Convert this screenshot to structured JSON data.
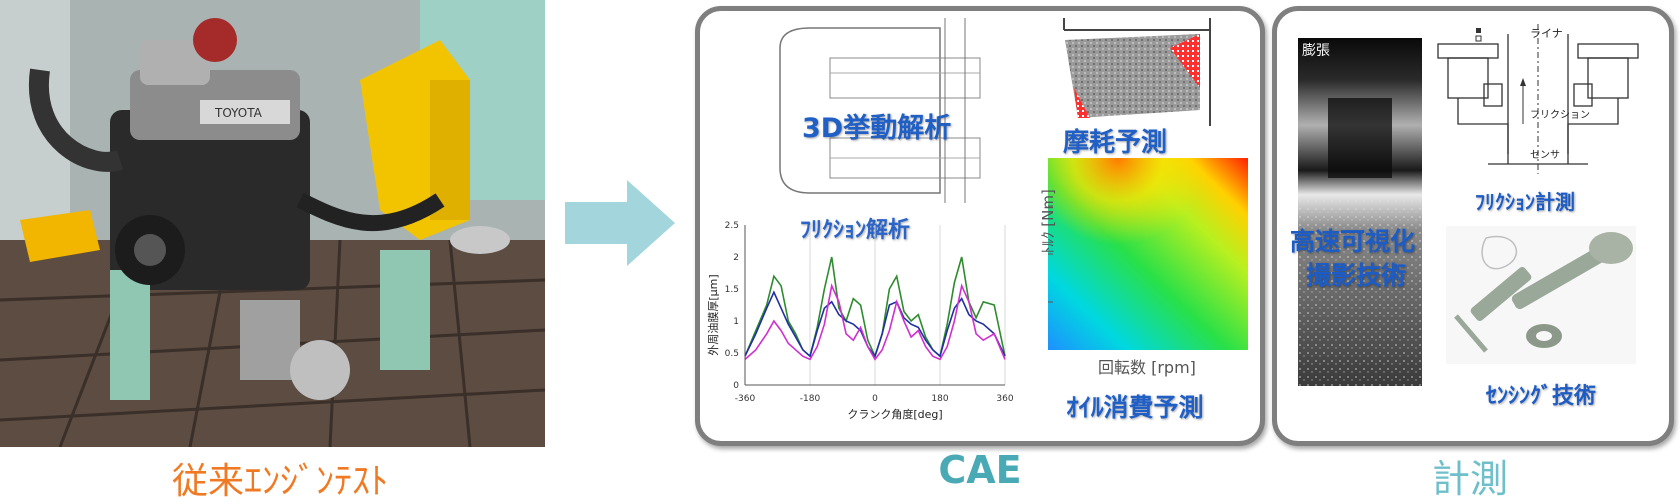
{
  "left": {
    "caption": "従来ｴﾝｼﾞﾝﾃｽﾄ",
    "photo_badge": "TOYOTA"
  },
  "cae": {
    "caption": "CAE",
    "label_3d": "3D挙動解析",
    "label_wear": "摩耗予測",
    "label_oil": "ｵｲﾙ消費予測",
    "friction_chart_title": "ﾌﾘｸｼｮﾝ解析",
    "heatmap_xlabel": "回転数 [rpm]",
    "heatmap_ylabel": "ﾄﾙｸ [Nm]"
  },
  "measure": {
    "caption": "計測",
    "label_highspeed_1": "高速可視化",
    "label_highspeed_2": "撮影技術",
    "label_friction": "ﾌﾘｸｼｮﾝ計測",
    "label_sensing": "ｾﾝｼﾝｸﾞ技術",
    "img_label_expansion": "膨張",
    "liner_label": "ライナ",
    "friction_small_label": "フリクション",
    "sensor_label": "センサ"
  },
  "chart_data": {
    "type": "line",
    "title": "ﾌﾘｸｼｮﾝ解析",
    "xlabel": "クランク角度[deg]",
    "ylabel": "外周油膜厚[μm]",
    "xlim": [
      -360,
      360
    ],
    "ylim": [
      0,
      2.5
    ],
    "xticks": [
      -360,
      -180,
      0,
      180,
      360
    ],
    "yticks": [
      0,
      0.5,
      1,
      1.5,
      2,
      2.5
    ],
    "x": [
      -360,
      -330,
      -300,
      -280,
      -260,
      -240,
      -220,
      -200,
      -180,
      -160,
      -140,
      -120,
      -100,
      -80,
      -60,
      -40,
      -20,
      0,
      20,
      40,
      60,
      80,
      100,
      120,
      140,
      160,
      180,
      200,
      220,
      240,
      260,
      280,
      300,
      330,
      360
    ],
    "series": [
      {
        "color": "#2e8b2e",
        "values": [
          0.45,
          0.85,
          1.25,
          1.7,
          1.55,
          1.0,
          0.8,
          0.55,
          0.45,
          0.9,
          1.5,
          2.0,
          1.2,
          1.0,
          1.35,
          1.25,
          0.7,
          0.45,
          0.8,
          1.5,
          1.7,
          1.15,
          1.0,
          1.1,
          0.75,
          0.55,
          0.45,
          0.95,
          1.6,
          2.0,
          1.3,
          1.05,
          1.3,
          1.25,
          0.45
        ]
      },
      {
        "color": "#2030a0",
        "values": [
          0.45,
          0.8,
          1.2,
          1.45,
          1.2,
          0.95,
          0.75,
          0.55,
          0.45,
          0.85,
          1.2,
          1.3,
          1.1,
          1.0,
          0.95,
          0.85,
          0.6,
          0.45,
          0.8,
          1.25,
          1.3,
          1.05,
          0.95,
          0.9,
          0.7,
          0.55,
          0.45,
          0.85,
          1.2,
          1.35,
          1.1,
          1.0,
          0.95,
          0.8,
          0.45
        ]
      },
      {
        "color": "#d030d0",
        "values": [
          0.4,
          0.55,
          0.8,
          1.0,
          0.85,
          0.65,
          0.55,
          0.45,
          0.4,
          0.6,
          0.95,
          1.55,
          1.3,
          0.8,
          0.7,
          0.9,
          0.6,
          0.4,
          0.55,
          0.85,
          1.3,
          1.0,
          0.75,
          0.85,
          0.6,
          0.45,
          0.4,
          0.6,
          1.0,
          1.55,
          1.3,
          0.8,
          0.7,
          0.8,
          0.4
        ]
      }
    ]
  }
}
